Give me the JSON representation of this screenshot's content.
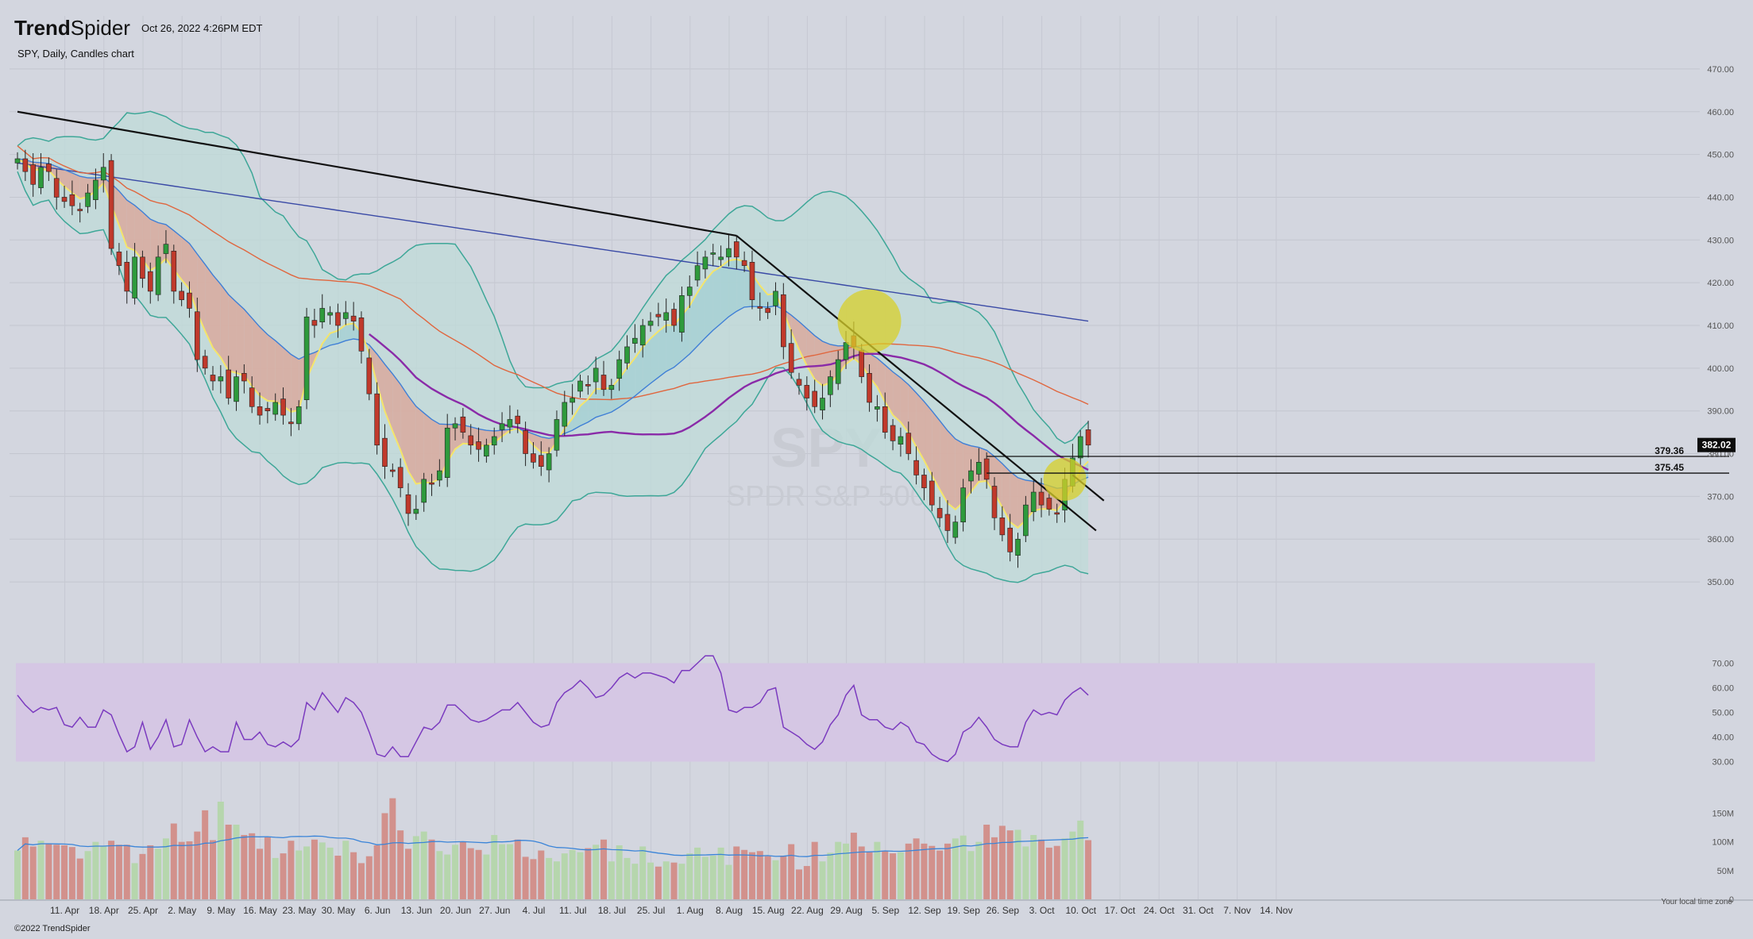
{
  "header": {
    "brand_bold": "Trend",
    "brand_light": "Spider",
    "timestamp": "Oct 26, 2022 4:26PM EDT",
    "subtitle": "SPY, Daily, Candles chart",
    "copyright": "©2022 TrendSpider",
    "timezone_note": "Your local time zone",
    "watermark_ticker": "SPY",
    "watermark_name": "SPDR S&P 500"
  },
  "colors": {
    "bg": "#d3d6df",
    "up": "#2e9a3c",
    "down": "#c0392b",
    "bb": "#3ea798",
    "bb_fill": "#bfdbd8",
    "ema_fast": "#f4e56b",
    "ema_slow": "#3f7fd6",
    "ma50": "#e0663e",
    "ma200": "#3a4aa6",
    "vwap": "#8a2aa8",
    "rsi": "#7b3bbf",
    "rsi_band": "#d5c7e4",
    "trend": "#111111",
    "highlight": "#d8cf2a",
    "vol_up": "#b6d6ad",
    "vol_down": "#d2918c",
    "vol_ma": "#3a84d8"
  },
  "chart_data": {
    "type": "candlestick",
    "title": "SPY, Daily, Candles chart",
    "x_labels": [
      "11. Apr",
      "18. Apr",
      "25. Apr",
      "2. May",
      "9. May",
      "16. May",
      "23. May",
      "30. May",
      "6. Jun",
      "13. Jun",
      "20. Jun",
      "27. Jun",
      "4. Jul",
      "11. Jul",
      "18. Jul",
      "25. Jul",
      "1. Aug",
      "8. Aug",
      "15. Aug",
      "22. Aug",
      "29. Aug",
      "5. Sep",
      "12. Sep",
      "19. Sep",
      "26. Sep",
      "3. Oct",
      "10. Oct",
      "17. Oct",
      "24. Oct",
      "31. Oct",
      "7. Nov",
      "14. Nov"
    ],
    "price_axis": {
      "min": 345,
      "max": 475,
      "ticks": [
        "470.00",
        "460.00",
        "450.00",
        "440.00",
        "430.00",
        "420.00",
        "410.00",
        "400.00",
        "390.00",
        "380.00",
        "370.00",
        "360.00",
        "350.00"
      ]
    },
    "last_price": "382.02",
    "levels": [
      "379.36",
      "375.45"
    ],
    "level_values": [
      379.36,
      375.45
    ],
    "closes": [
      449,
      446,
      443,
      447,
      446,
      440,
      439,
      438,
      437,
      441,
      444,
      447,
      428,
      424,
      418,
      426,
      421,
      418,
      426,
      429,
      418,
      416,
      414,
      402,
      400,
      397,
      398,
      393,
      398,
      397,
      391,
      389,
      390,
      392,
      389,
      387,
      391,
      412,
      410,
      414,
      413,
      410,
      413,
      411,
      404,
      394,
      382,
      377,
      376,
      372,
      366,
      367,
      374,
      373,
      376,
      386,
      387,
      385,
      382,
      381,
      382,
      384,
      387,
      388,
      387,
      380,
      378,
      377,
      380,
      388,
      392,
      393,
      397,
      396,
      400,
      395,
      396,
      402,
      405,
      407,
      410,
      411,
      412,
      413,
      410,
      417,
      419,
      424,
      426,
      427,
      426,
      428,
      426,
      424,
      416,
      414,
      413,
      418,
      405,
      399,
      396,
      393,
      391,
      393,
      398,
      402,
      406,
      405,
      398,
      392,
      391,
      385,
      383,
      384,
      380,
      375,
      372,
      368,
      365,
      362,
      364,
      372,
      376,
      378,
      374,
      365,
      361,
      357,
      360,
      368,
      371,
      368,
      367,
      366,
      374,
      379,
      384,
      382
    ],
    "rsi": {
      "min": 25,
      "max": 75,
      "ticks": [
        "70.00",
        "60.00",
        "50.00",
        "40.00",
        "30.00"
      ],
      "values": [
        57,
        53,
        50,
        52,
        51,
        52,
        45,
        44,
        48,
        44,
        44,
        51,
        49,
        41,
        34,
        36,
        46,
        35,
        40,
        47,
        36,
        37,
        47,
        40,
        34,
        36,
        34,
        34,
        46,
        39,
        39,
        42,
        37,
        36,
        38,
        36,
        39,
        54,
        51,
        58,
        54,
        50,
        56,
        54,
        50,
        42,
        33,
        32,
        36,
        32,
        32,
        38,
        44,
        43,
        46,
        53,
        53,
        50,
        47,
        46,
        47,
        49,
        51,
        51,
        54,
        50,
        46,
        44,
        45,
        54,
        58,
        60,
        63,
        60,
        56,
        57,
        60,
        64,
        66,
        64,
        66,
        66,
        65,
        64,
        62,
        67,
        67,
        70,
        73,
        73,
        66,
        51,
        50,
        52,
        52,
        54,
        59,
        60,
        44,
        42,
        40,
        37,
        35,
        38,
        45,
        49,
        57,
        61,
        49,
        47,
        47,
        44,
        43,
        46,
        44,
        38,
        37,
        33,
        31,
        30,
        33,
        42,
        44,
        48,
        44,
        39,
        37,
        36,
        36,
        46,
        51,
        49,
        50,
        49,
        55,
        58,
        60,
        57
      ]
    },
    "volume": {
      "ticks": [
        "150M",
        "100M",
        "50M",
        "0"
      ],
      "values": [
        85,
        108,
        92,
        102,
        97,
        95,
        94,
        91,
        71,
        84,
        100,
        92,
        102,
        95,
        95,
        63,
        79,
        94,
        88,
        106,
        132,
        100,
        101,
        118,
        155,
        103,
        170,
        130,
        130,
        112,
        115,
        88,
        108,
        72,
        80,
        102,
        85,
        92,
        104,
        99,
        90,
        76,
        102,
        82,
        63,
        75,
        94,
        150,
        176,
        120,
        88,
        110,
        118,
        104,
        84,
        78,
        95,
        100,
        89,
        86,
        78,
        112,
        96,
        96,
        104,
        74,
        70,
        85,
        72,
        66,
        80,
        86,
        82,
        89,
        95,
        104,
        66,
        94,
        72,
        62,
        92,
        64,
        57,
        66,
        64,
        62,
        80,
        90,
        74,
        76,
        90,
        60,
        92,
        86,
        82,
        84,
        75,
        68,
        76,
        96,
        52,
        58,
        100,
        66,
        81,
        100,
        97,
        116,
        92,
        82,
        100,
        84,
        80,
        82,
        97,
        106,
        97,
        93,
        85,
        97,
        106,
        111,
        84,
        100,
        130,
        108,
        128,
        120,
        121,
        92,
        112,
        104,
        90,
        93,
        106,
        118,
        137,
        103
      ]
    }
  }
}
